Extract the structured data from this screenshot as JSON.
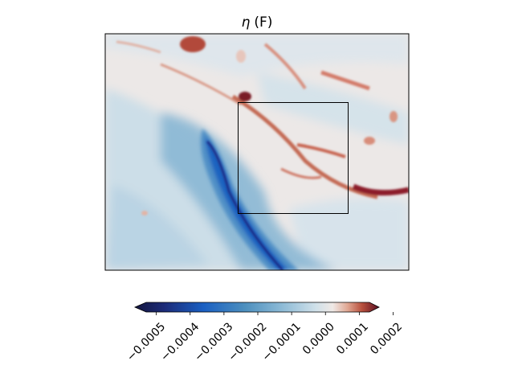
{
  "chart_data": {
    "type": "heatmap",
    "title": "η (F)",
    "title_symbol": "η",
    "title_suffix": "(F)",
    "colormap": "balance (diverging, dark blue → white → dark red)",
    "colors": {
      "deep_negative": "#14163f",
      "mid_negative": "#1a5fc2",
      "light_negative": "#8cbad6",
      "neutral": "#efe9e6",
      "positive": "#b8503d",
      "deep_positive": "#5a0f22"
    },
    "colorbar": {
      "orientation": "horizontal",
      "extend": "both",
      "range": [
        -0.00053,
        0.00013
      ],
      "ticks": [
        {
          "value": -0.0005,
          "label": "−0.0005"
        },
        {
          "value": -0.0004,
          "label": "−0.0004"
        },
        {
          "value": -0.0003,
          "label": "−0.0003"
        },
        {
          "value": -0.0002,
          "label": "−0.0002"
        },
        {
          "value": -0.0001,
          "label": "−0.0001"
        },
        {
          "value": 0.0,
          "label": "0.0000"
        },
        {
          "value": 0.0001,
          "label": "0.0001"
        },
        {
          "value": 0.0002,
          "label": "0.0002"
        }
      ],
      "tick_label_rotation_deg": 45
    },
    "axes": {
      "x_ticks": false,
      "y_ticks": false,
      "grid": false
    },
    "annotations": [
      {
        "type": "rectangle",
        "description": "inset box outline"
      }
    ],
    "features": [
      {
        "kind": "band",
        "sign": "negative",
        "description": "strong negative arc sweeping from center-left down to bottom-center"
      },
      {
        "kind": "filament",
        "sign": "positive",
        "description": "positive filaments along diagonal from upper-left toward right"
      },
      {
        "kind": "filament",
        "sign": "positive",
        "description": "strong positive streak at right edge, mid-height"
      }
    ]
  }
}
